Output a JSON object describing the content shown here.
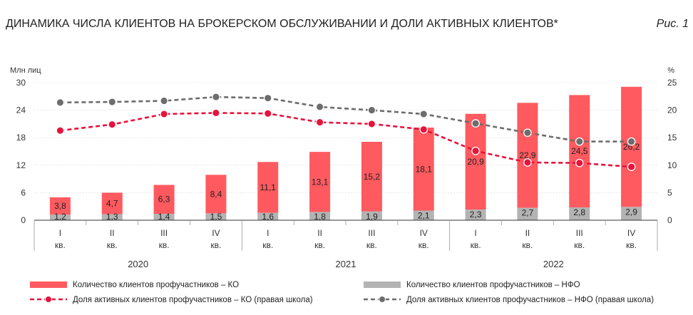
{
  "header": {
    "title": "ДИНАМИКА ЧИСЛА КЛИЕНТОВ НА БРОКЕРСКОМ ОБСЛУЖИВАНИИ И ДОЛИ АКТИВНЫХ КЛИЕНТОВ*",
    "figure_label": "Рис. 1"
  },
  "colors": {
    "ko": "#ff5a5f",
    "ko_line": "#e8123c",
    "nfo": "#b3b3b3",
    "nfo_line": "#6d6d6d",
    "axis": "#333333",
    "grid": "#d9d9d9"
  },
  "chart_data": {
    "type": "bar",
    "left_axis": {
      "label": "Млн лиц",
      "ylim": [
        0,
        30
      ],
      "ticks": [
        "0",
        "6",
        "12",
        "18",
        "24",
        "30"
      ]
    },
    "right_axis": {
      "label": "%",
      "ylim": [
        0,
        25
      ],
      "ticks": [
        "0",
        "5",
        "10",
        "15",
        "20",
        "25"
      ]
    },
    "quarters": [
      "I",
      "II",
      "III",
      "IV",
      "I",
      "II",
      "III",
      "IV",
      "I",
      "II",
      "III",
      "IV"
    ],
    "quarter_suffix": "кв.",
    "years": [
      "2020",
      "2021",
      "2022"
    ],
    "series": [
      {
        "name": "Количество клиентов профучастников – КО",
        "kind": "bar",
        "axis": "left",
        "values": [
          3.8,
          4.7,
          6.3,
          8.4,
          11.1,
          13.1,
          15.2,
          18.1,
          20.9,
          22.9,
          24.5,
          26.2
        ],
        "labels": [
          "3,8",
          "4,7",
          "6,3",
          "8,4",
          "11,1",
          "13,1",
          "15,2",
          "18,1",
          "20,9",
          "22,9",
          "24,5",
          "26,2"
        ]
      },
      {
        "name": "Количество клиентов профучастников – НФО",
        "kind": "bar",
        "axis": "left",
        "values": [
          1.2,
          1.3,
          1.4,
          1.5,
          1.6,
          1.8,
          1.9,
          2.1,
          2.3,
          2.7,
          2.8,
          2.9
        ],
        "labels": [
          "1,2",
          "1,3",
          "1,4",
          "1,5",
          "1,6",
          "1,8",
          "1,9",
          "2,1",
          "2,3",
          "2,7",
          "2,8",
          "2,9"
        ]
      },
      {
        "name": "Доля активных клиентов профучастников – КО (правая школа)",
        "kind": "line",
        "axis": "right",
        "values": [
          16.3,
          17.4,
          19.3,
          19.5,
          19.4,
          17.8,
          17.5,
          16.5,
          12.6,
          10.5,
          10.4,
          9.7
        ]
      },
      {
        "name": "Доля активных клиентов профучастников – НФО (правая школа)",
        "kind": "line",
        "axis": "right",
        "values": [
          21.4,
          21.5,
          21.7,
          22.4,
          22.2,
          20.6,
          20.0,
          19.3,
          17.6,
          15.9,
          14.3,
          14.3
        ]
      }
    ]
  }
}
